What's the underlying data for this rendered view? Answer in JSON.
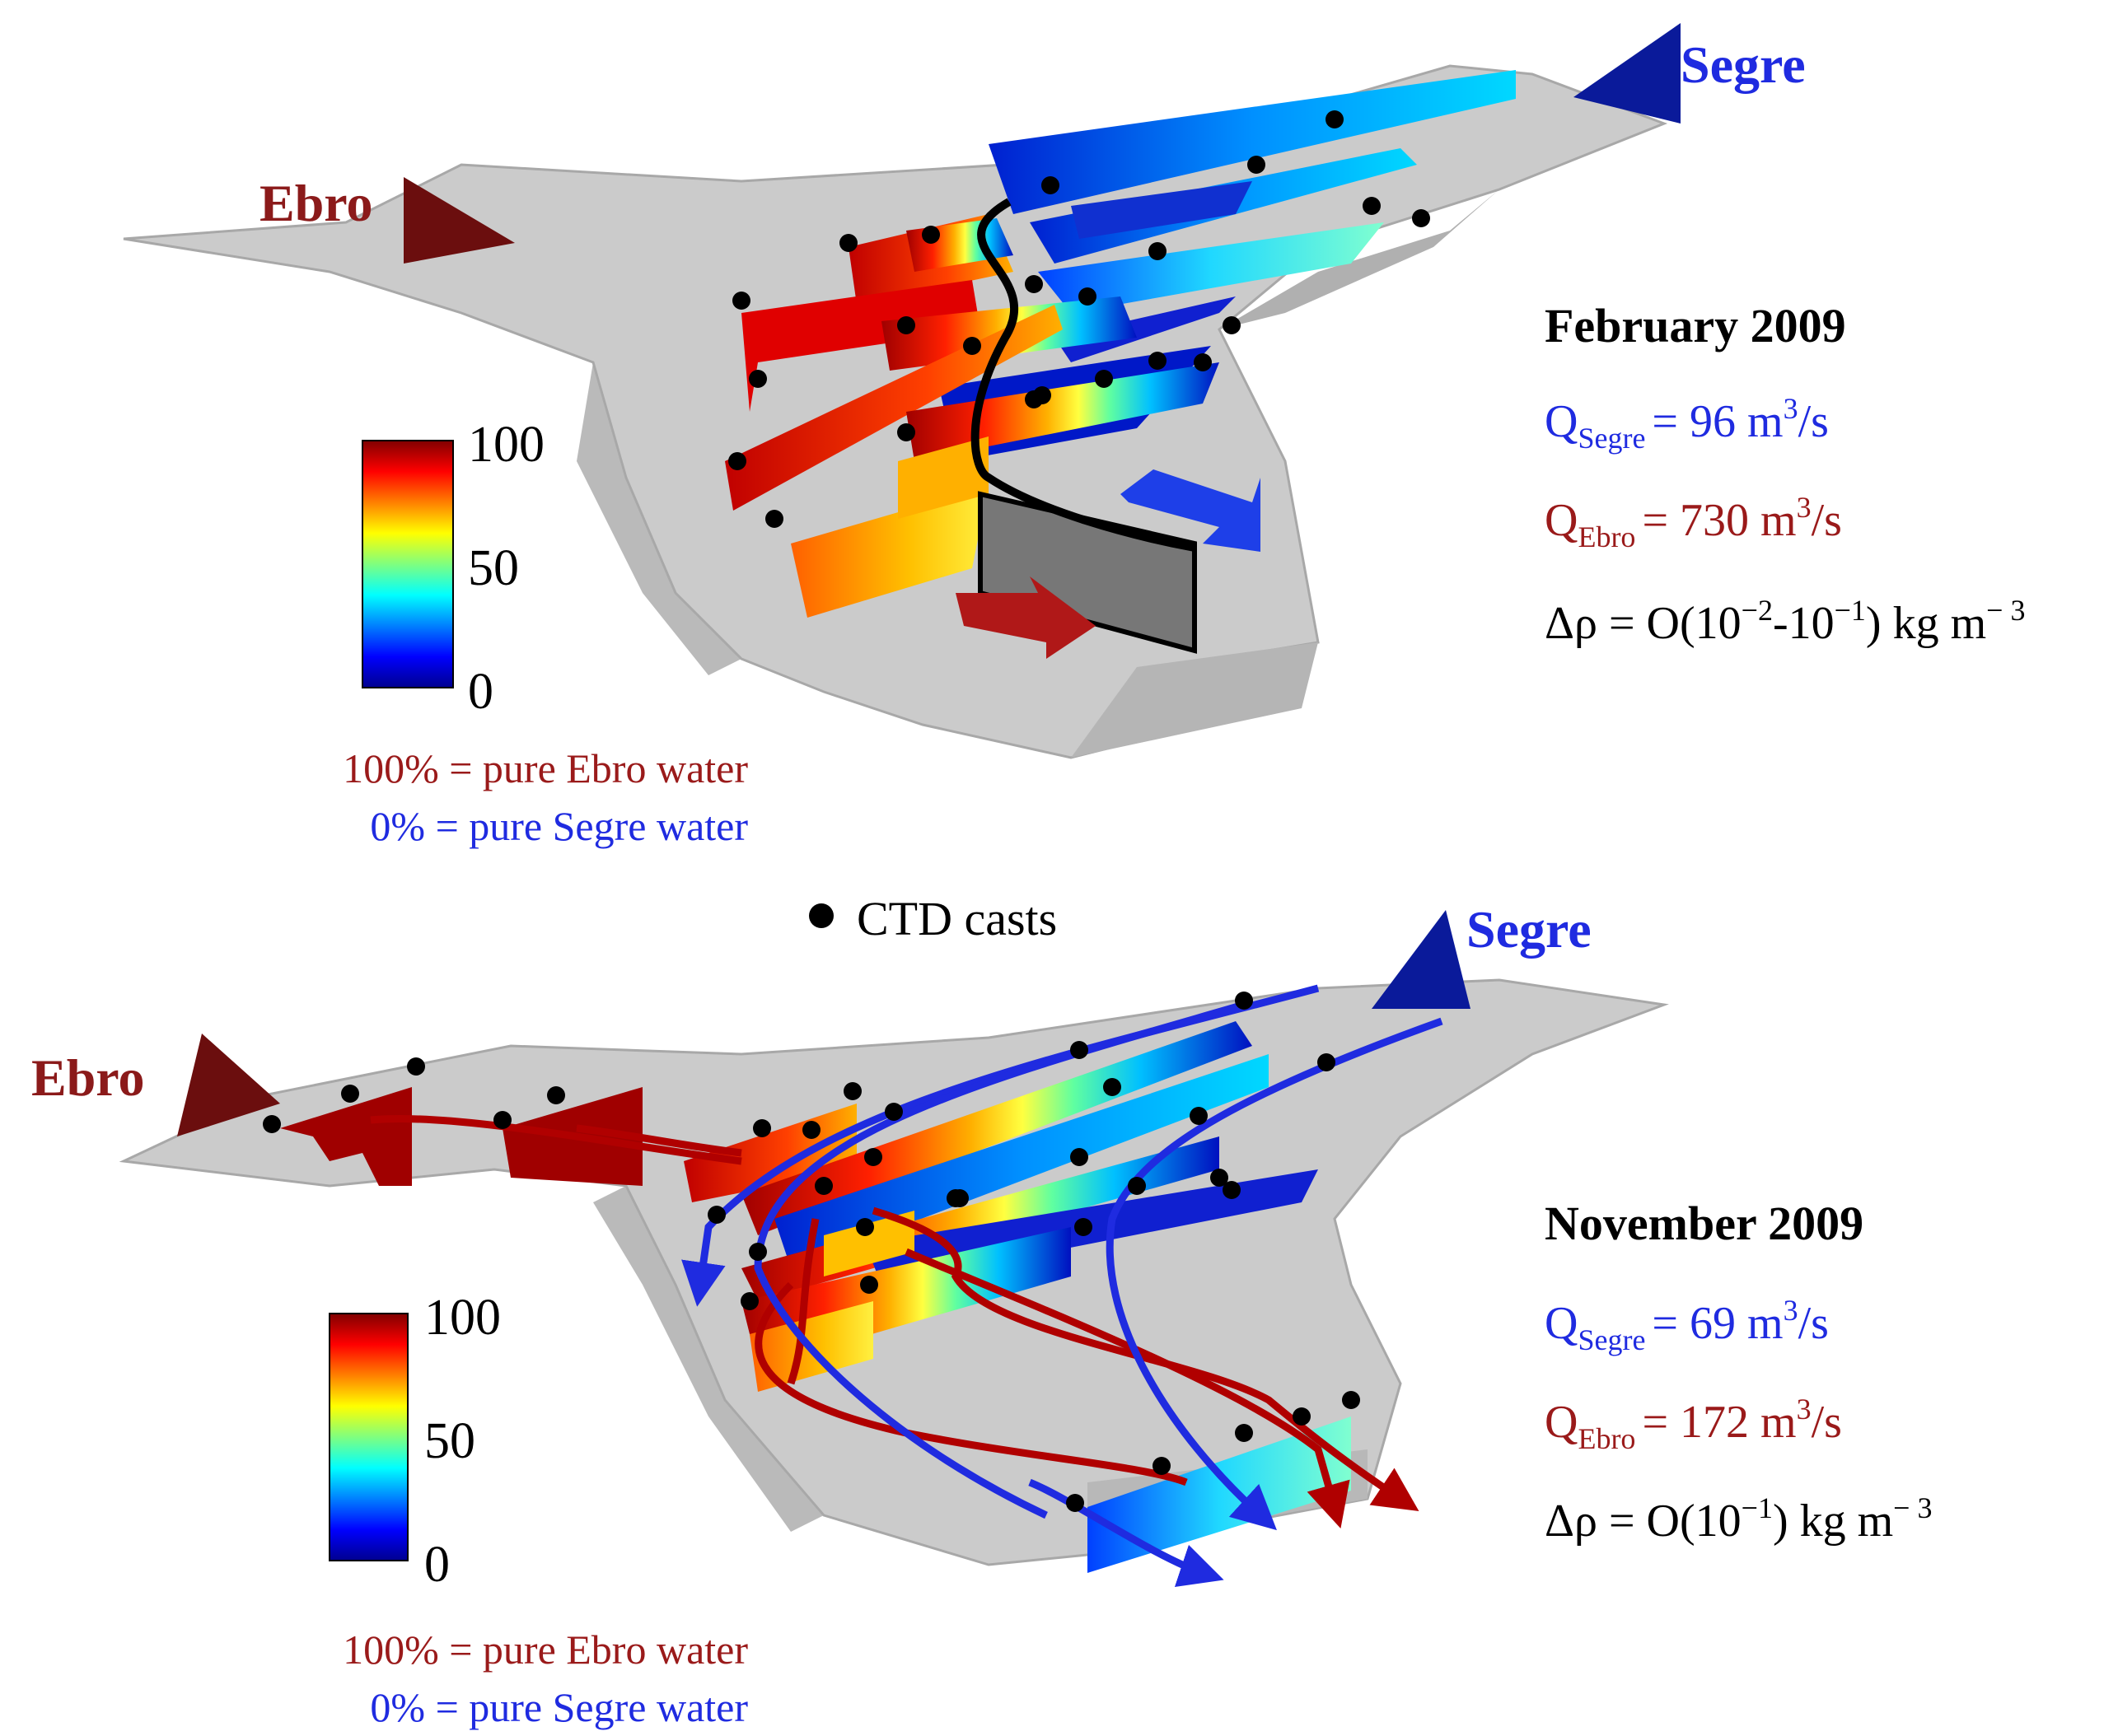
{
  "colors": {
    "ebro": "#8B1A1A",
    "segre": "#1F2BE0",
    "segre_dark": "#0A1A9A",
    "basin": "#C9C9C9",
    "ctd": "#000000",
    "text_black": "#000000"
  },
  "legend_ctd": {
    "label": "CTD casts",
    "icon": "filled-circle"
  },
  "panels": [
    {
      "id": "february",
      "river_ebro": "Ebro",
      "river_segre": "Segre",
      "title": "February 2009",
      "q_segre": {
        "sym": "Q",
        "sub": "Segre",
        "rest": "= 96 m",
        "sup": "3",
        "unit": "/s"
      },
      "q_ebro": {
        "sym": "Q",
        "sub": "Ebro",
        "rest": "= 730 m",
        "sup": "3",
        "unit": "/s"
      },
      "delta_rho": {
        "a": "Δρ = O(10",
        "s1": "−2",
        "b": "-10",
        "s2": "−1",
        "c": ") kg m",
        "s3": "− 3"
      },
      "colorbar": {
        "ticks": [
          "100",
          "50",
          "0"
        ],
        "vmin": 0,
        "vmax": 100,
        "colormap": "jet"
      },
      "note_ebro": "100% = pure Ebro water",
      "note_segre": "0% = pure Segre water"
    },
    {
      "id": "november",
      "river_ebro": "Ebro",
      "river_segre": "Segre",
      "title": "November  2009",
      "q_segre": {
        "sym": "Q",
        "sub": "Segre",
        "rest": "= 69 m",
        "sup": "3",
        "unit": "/s"
      },
      "q_ebro": {
        "sym": "Q",
        "sub": "Ebro",
        "rest": "= 172 m",
        "sup": "3",
        "unit": "/s"
      },
      "delta_rho": {
        "a": "Δρ = O(10",
        "s1": "−1",
        "c": ") kg m",
        "s3": "− 3"
      },
      "colorbar": {
        "ticks": [
          "100",
          "50",
          "0"
        ],
        "vmin": 0,
        "vmax": 100,
        "colormap": "jet"
      },
      "note_ebro": "100% = pure Ebro water",
      "note_segre": "0% = pure Segre water"
    }
  ]
}
